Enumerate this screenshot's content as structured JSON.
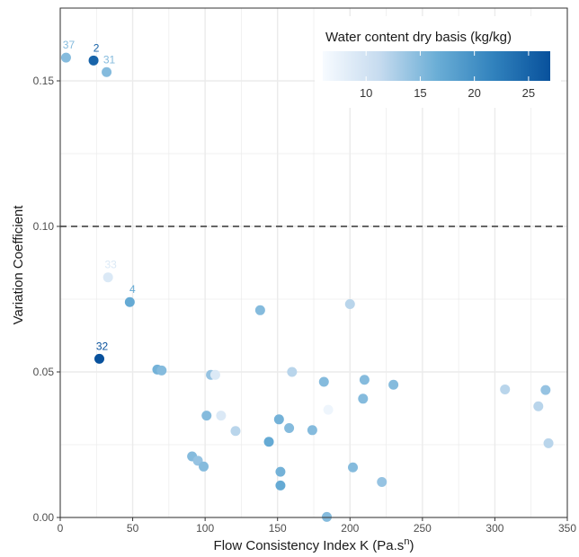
{
  "chart_data": {
    "type": "scatter",
    "xlabel": "Flow Consistency Index K (Pa.s",
    "xlabel_sup": "n",
    "xlabel_suffix": ")",
    "ylabel": "Variation Coefficient",
    "xlim": [
      0,
      350
    ],
    "ylim": [
      0,
      0.175
    ],
    "x_ticks": [
      0,
      50,
      100,
      150,
      200,
      250,
      300,
      350
    ],
    "y_ticks": [
      0.0,
      0.05,
      0.1,
      0.15
    ],
    "y_tick_labels": [
      "0.00",
      "0.05",
      "0.10",
      "0.15"
    ],
    "grid": true,
    "reference_line": {
      "y": 0.1,
      "style": "dashed",
      "color": "#666666"
    },
    "legend": {
      "title": "Water content dry basis (kg/kg)",
      "placement": "top-right",
      "min": 6,
      "max": 27,
      "ticks": [
        10,
        15,
        20,
        25
      ],
      "color_low": "#f7fbff",
      "color_high": "#08519c"
    },
    "points": [
      {
        "x": 4,
        "y": 0.158,
        "w": 15,
        "label": "37"
      },
      {
        "x": 23,
        "y": 0.157,
        "w": 25,
        "label": "2"
      },
      {
        "x": 32,
        "y": 0.153,
        "w": 15,
        "label": "31"
      },
      {
        "x": 33,
        "y": 0.0825,
        "w": 9,
        "label": "33"
      },
      {
        "x": 48,
        "y": 0.074,
        "w": 17,
        "label": "4"
      },
      {
        "x": 27,
        "y": 0.0545,
        "w": 27,
        "label": "32"
      },
      {
        "x": 67,
        "y": 0.0508,
        "w": 16,
        "label": ""
      },
      {
        "x": 70,
        "y": 0.0505,
        "w": 15,
        "label": ""
      },
      {
        "x": 104,
        "y": 0.049,
        "w": 14,
        "label": ""
      },
      {
        "x": 107,
        "y": 0.049,
        "w": 9,
        "label": ""
      },
      {
        "x": 138,
        "y": 0.0712,
        "w": 15,
        "label": ""
      },
      {
        "x": 160,
        "y": 0.05,
        "w": 12,
        "label": ""
      },
      {
        "x": 200,
        "y": 0.0733,
        "w": 12,
        "label": ""
      },
      {
        "x": 182,
        "y": 0.0466,
        "w": 15,
        "label": ""
      },
      {
        "x": 210,
        "y": 0.0473,
        "w": 15,
        "label": ""
      },
      {
        "x": 230,
        "y": 0.0456,
        "w": 15,
        "label": ""
      },
      {
        "x": 209,
        "y": 0.0408,
        "w": 15,
        "label": ""
      },
      {
        "x": 185,
        "y": 0.037,
        "w": 7,
        "label": ""
      },
      {
        "x": 101,
        "y": 0.035,
        "w": 15,
        "label": ""
      },
      {
        "x": 111,
        "y": 0.035,
        "w": 9,
        "label": ""
      },
      {
        "x": 151,
        "y": 0.0337,
        "w": 16,
        "label": ""
      },
      {
        "x": 158,
        "y": 0.0307,
        "w": 15,
        "label": ""
      },
      {
        "x": 174,
        "y": 0.03,
        "w": 15,
        "label": ""
      },
      {
        "x": 121,
        "y": 0.0297,
        "w": 12,
        "label": ""
      },
      {
        "x": 144,
        "y": 0.026,
        "w": 17,
        "label": ""
      },
      {
        "x": 91,
        "y": 0.021,
        "w": 15,
        "label": ""
      },
      {
        "x": 95,
        "y": 0.0195,
        "w": 14,
        "label": ""
      },
      {
        "x": 99,
        "y": 0.0175,
        "w": 15,
        "label": ""
      },
      {
        "x": 152,
        "y": 0.0157,
        "w": 16,
        "label": ""
      },
      {
        "x": 152,
        "y": 0.011,
        "w": 17,
        "label": ""
      },
      {
        "x": 202,
        "y": 0.0172,
        "w": 15,
        "label": ""
      },
      {
        "x": 222,
        "y": 0.0122,
        "w": 14,
        "label": ""
      },
      {
        "x": 184,
        "y": 0.0002,
        "w": 15,
        "label": ""
      },
      {
        "x": 307,
        "y": 0.044,
        "w": 12,
        "label": ""
      },
      {
        "x": 330,
        "y": 0.0382,
        "w": 12,
        "label": ""
      },
      {
        "x": 335,
        "y": 0.0438,
        "w": 14,
        "label": ""
      },
      {
        "x": 337,
        "y": 0.0255,
        "w": 12,
        "label": ""
      }
    ]
  }
}
